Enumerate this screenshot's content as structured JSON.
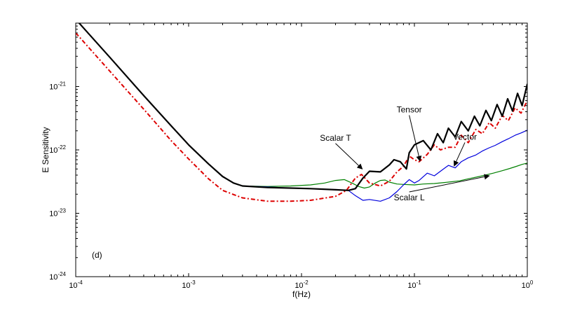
{
  "chart_data": {
    "type": "line",
    "title": "",
    "xlabel": "f(Hz)",
    "ylabel": "E Sensitivity",
    "xscale": "log",
    "yscale": "log",
    "xlim": [
      0.0001,
      1
    ],
    "ylim": [
      1e-24,
      1e-20
    ],
    "grid": false,
    "panel_label": "(d)",
    "x_ticks": [
      {
        "base": "10",
        "exp": "-4"
      },
      {
        "base": "10",
        "exp": "-3"
      },
      {
        "base": "10",
        "exp": "-2"
      },
      {
        "base": "10",
        "exp": "-1"
      },
      {
        "base": "10",
        "exp": "0"
      }
    ],
    "y_ticks": [
      {
        "base": "10",
        "exp": "-24"
      },
      {
        "base": "10",
        "exp": "-23"
      },
      {
        "base": "10",
        "exp": "-22"
      },
      {
        "base": "10",
        "exp": "-21"
      }
    ],
    "series": [
      {
        "name": "Scalar T",
        "color": "#000000",
        "style": "solid-thick",
        "points": [
          [
            0.0001,
            1.15e-20
          ],
          [
            0.0002,
            2.9e-21
          ],
          [
            0.0004,
            7.2e-22
          ],
          [
            0.0007,
            2.4e-22
          ],
          [
            0.001,
            1.2e-22
          ],
          [
            0.0015,
            6e-23
          ],
          [
            0.002,
            3.8e-23
          ],
          [
            0.0025,
            3e-23
          ],
          [
            0.003,
            2.7e-23
          ],
          [
            0.005,
            2.55e-23
          ],
          [
            0.008,
            2.5e-23
          ],
          [
            0.012,
            2.45e-23
          ],
          [
            0.02,
            2.35e-23
          ],
          [
            0.026,
            2.3e-23
          ],
          [
            0.03,
            2.45e-23
          ],
          [
            0.035,
            3.6e-23
          ],
          [
            0.04,
            4.6e-23
          ],
          [
            0.05,
            4.5e-23
          ],
          [
            0.06,
            5.8e-23
          ],
          [
            0.066,
            7e-23
          ],
          [
            0.075,
            6.5e-23
          ],
          [
            0.085,
            5e-23
          ],
          [
            0.09,
            9e-23
          ],
          [
            0.1,
            1.2e-22
          ],
          [
            0.12,
            1.4e-22
          ],
          [
            0.14,
            1e-22
          ],
          [
            0.16,
            1.8e-22
          ],
          [
            0.18,
            1.3e-22
          ],
          [
            0.2,
            2.2e-22
          ],
          [
            0.23,
            1.6e-22
          ],
          [
            0.26,
            2.8e-22
          ],
          [
            0.3,
            2e-22
          ],
          [
            0.34,
            3.4e-22
          ],
          [
            0.38,
            2.4e-22
          ],
          [
            0.43,
            4.2e-22
          ],
          [
            0.48,
            2.9e-22
          ],
          [
            0.54,
            5.2e-22
          ],
          [
            0.6,
            3.4e-22
          ],
          [
            0.67,
            6.4e-22
          ],
          [
            0.74,
            4.1e-22
          ],
          [
            0.82,
            7.8e-22
          ],
          [
            0.9,
            5e-22
          ],
          [
            1.0,
            1.1e-21
          ]
        ]
      },
      {
        "name": "Tensor",
        "color": "#dd0000",
        "style": "dash-dot-thick",
        "points": [
          [
            0.0001,
            7e-21
          ],
          [
            0.0002,
            1.75e-21
          ],
          [
            0.0004,
            4.4e-22
          ],
          [
            0.0007,
            1.4e-22
          ],
          [
            0.001,
            7.2e-23
          ],
          [
            0.0015,
            3.5e-23
          ],
          [
            0.002,
            2.3e-23
          ],
          [
            0.003,
            1.75e-23
          ],
          [
            0.005,
            1.55e-23
          ],
          [
            0.008,
            1.55e-23
          ],
          [
            0.012,
            1.6e-23
          ],
          [
            0.02,
            1.85e-23
          ],
          [
            0.025,
            2.3e-23
          ],
          [
            0.03,
            3.6e-23
          ],
          [
            0.034,
            4.1e-23
          ],
          [
            0.04,
            3e-23
          ],
          [
            0.05,
            2.7e-23
          ],
          [
            0.06,
            3.2e-23
          ],
          [
            0.07,
            4.5e-23
          ],
          [
            0.08,
            5.5e-23
          ],
          [
            0.09,
            8e-23
          ],
          [
            0.1,
            7e-23
          ],
          [
            0.11,
            6.5e-23
          ],
          [
            0.13,
            8.5e-23
          ],
          [
            0.15,
            1.2e-22
          ],
          [
            0.17,
            1e-22
          ],
          [
            0.2,
            1.1e-22
          ],
          [
            0.23,
            1.1e-22
          ],
          [
            0.26,
            1.7e-22
          ],
          [
            0.3,
            1.3e-22
          ],
          [
            0.35,
            2.1e-22
          ],
          [
            0.4,
            1.8e-22
          ],
          [
            0.46,
            2.7e-22
          ],
          [
            0.52,
            2.2e-22
          ],
          [
            0.6,
            3.5e-22
          ],
          [
            0.68,
            2.9e-22
          ],
          [
            0.78,
            4.6e-22
          ],
          [
            0.88,
            3.8e-22
          ],
          [
            1.0,
            6e-22
          ]
        ]
      },
      {
        "name": "Vector",
        "color": "#0000dd",
        "style": "solid-thin",
        "points": [
          [
            0.003,
            2.7e-23
          ],
          [
            0.005,
            2.6e-23
          ],
          [
            0.008,
            2.5e-23
          ],
          [
            0.012,
            2.45e-23
          ],
          [
            0.02,
            2.35e-23
          ],
          [
            0.026,
            2.3e-23
          ],
          [
            0.03,
            1.9e-23
          ],
          [
            0.035,
            1.6e-23
          ],
          [
            0.04,
            1.65e-23
          ],
          [
            0.05,
            1.55e-23
          ],
          [
            0.06,
            1.75e-23
          ],
          [
            0.07,
            2.2e-23
          ],
          [
            0.08,
            2.8e-23
          ],
          [
            0.09,
            3.4e-23
          ],
          [
            0.1,
            3e-23
          ],
          [
            0.11,
            3.3e-23
          ],
          [
            0.13,
            4.3e-23
          ],
          [
            0.15,
            3.9e-23
          ],
          [
            0.17,
            4.6e-23
          ],
          [
            0.2,
            5.7e-23
          ],
          [
            0.23,
            5.2e-23
          ],
          [
            0.26,
            6.5e-23
          ],
          [
            0.3,
            7.5e-23
          ],
          [
            0.35,
            8.3e-23
          ],
          [
            0.4,
            9.6e-23
          ],
          [
            0.46,
            1.08e-22
          ],
          [
            0.52,
            1.18e-22
          ],
          [
            0.6,
            1.35e-22
          ],
          [
            0.68,
            1.5e-22
          ],
          [
            0.78,
            1.7e-22
          ],
          [
            0.88,
            1.85e-22
          ],
          [
            1.0,
            2.05e-22
          ]
        ]
      },
      {
        "name": "Scalar L",
        "color": "#008000",
        "style": "solid-thin",
        "points": [
          [
            0.003,
            2.7e-23
          ],
          [
            0.005,
            2.65e-23
          ],
          [
            0.008,
            2.7e-23
          ],
          [
            0.012,
            2.8e-23
          ],
          [
            0.016,
            3e-23
          ],
          [
            0.02,
            3.3e-23
          ],
          [
            0.024,
            3.4e-23
          ],
          [
            0.028,
            3e-23
          ],
          [
            0.032,
            2.65e-23
          ],
          [
            0.036,
            2.5e-23
          ],
          [
            0.04,
            2.6e-23
          ],
          [
            0.045,
            3e-23
          ],
          [
            0.05,
            3.3e-23
          ],
          [
            0.055,
            3.35e-23
          ],
          [
            0.06,
            3.1e-23
          ],
          [
            0.07,
            2.9e-23
          ],
          [
            0.08,
            2.85e-23
          ],
          [
            0.1,
            2.8e-23
          ],
          [
            0.12,
            2.9e-23
          ],
          [
            0.15,
            2.95e-23
          ],
          [
            0.2,
            3.1e-23
          ],
          [
            0.25,
            3.25e-23
          ],
          [
            0.3,
            3.5e-23
          ],
          [
            0.4,
            3.9e-23
          ],
          [
            0.5,
            4.3e-23
          ],
          [
            0.6,
            4.7e-23
          ],
          [
            0.7,
            5.1e-23
          ],
          [
            0.8,
            5.5e-23
          ],
          [
            0.9,
            5.9e-23
          ],
          [
            1.0,
            6.2e-23
          ]
        ]
      }
    ],
    "annotations": [
      {
        "text": "Scalar T",
        "x": 0.02,
        "y": 1.4e-22,
        "arrow_to": [
          0.0345,
          5e-23
        ]
      },
      {
        "text": "Tensor",
        "x": 0.09,
        "y": 3.9e-22,
        "arrow_to": [
          0.112,
          6.7e-23
        ]
      },
      {
        "text": "Vector",
        "x": 0.28,
        "y": 1.45e-22,
        "arrow_to": [
          0.225,
          5.6e-23
        ]
      },
      {
        "text": "Scalar L",
        "x": 0.09,
        "y": 1.6e-23,
        "arrow_to": [
          0.46,
          3.9e-23
        ]
      }
    ]
  }
}
